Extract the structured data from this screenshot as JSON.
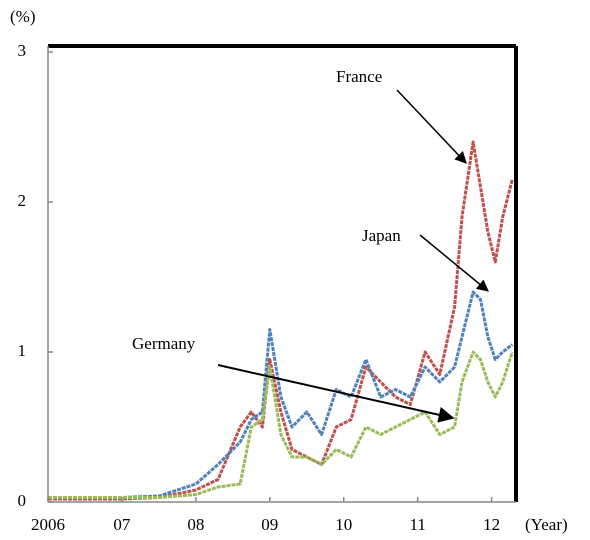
{
  "chart_data": {
    "type": "line",
    "y_label": "(%)",
    "x_label": "(Year)",
    "annotations": [
      "France",
      "Japan",
      "Germany"
    ],
    "x": [
      2006,
      2006.5,
      2007,
      2007.5,
      2008,
      2008.3,
      2008.6,
      2008.75,
      2008.9,
      2009.0,
      2009.15,
      2009.3,
      2009.5,
      2009.7,
      2009.9,
      2010.1,
      2010.3,
      2010.5,
      2010.7,
      2010.9,
      2011.1,
      2011.3,
      2011.5,
      2011.6,
      2011.75,
      2011.85,
      2011.95,
      2012.05,
      2012.15,
      2012.28
    ],
    "series": [
      {
        "name": "France",
        "color": "#c0504d",
        "values": [
          0.02,
          0.02,
          0.02,
          0.03,
          0.08,
          0.15,
          0.5,
          0.6,
          0.5,
          0.95,
          0.6,
          0.35,
          0.3,
          0.25,
          0.5,
          0.55,
          0.9,
          0.8,
          0.7,
          0.65,
          1.0,
          0.85,
          1.3,
          1.9,
          2.4,
          2.1,
          1.8,
          1.6,
          1.9,
          2.15
        ]
      },
      {
        "name": "Japan",
        "color": "#4f81bd",
        "values": [
          0.03,
          0.03,
          0.03,
          0.04,
          0.12,
          0.25,
          0.4,
          0.55,
          0.6,
          1.15,
          0.7,
          0.5,
          0.6,
          0.45,
          0.75,
          0.7,
          0.95,
          0.7,
          0.75,
          0.7,
          0.9,
          0.8,
          0.9,
          1.1,
          1.4,
          1.35,
          1.1,
          0.95,
          1.0,
          1.05
        ]
      },
      {
        "name": "Germany",
        "color": "#9bbb59",
        "values": [
          0.03,
          0.03,
          0.03,
          0.03,
          0.05,
          0.1,
          0.12,
          0.5,
          0.55,
          0.9,
          0.45,
          0.3,
          0.3,
          0.25,
          0.35,
          0.3,
          0.5,
          0.45,
          0.5,
          0.55,
          0.6,
          0.45,
          0.5,
          0.8,
          1.0,
          0.95,
          0.8,
          0.7,
          0.8,
          1.0
        ]
      }
    ],
    "xlim": [
      2006,
      2012.33
    ],
    "xticks": [
      2006,
      {
        "value": 2007,
        "label": "07"
      },
      {
        "value": 2008,
        "label": "08"
      },
      {
        "value": 2009,
        "label": "09"
      },
      {
        "value": 2010,
        "label": "10"
      },
      {
        "value": 2011,
        "label": "11"
      },
      {
        "value": 2012,
        "label": "12"
      }
    ],
    "ylim": [
      0,
      3
    ],
    "yticks": [
      0,
      1,
      2,
      3
    ]
  }
}
